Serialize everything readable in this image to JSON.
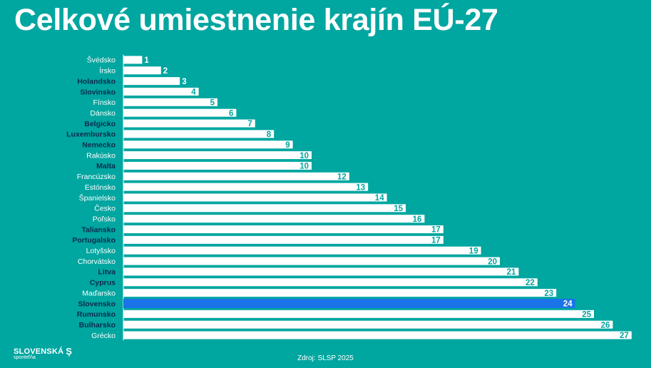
{
  "title": "Celkové umiestnenie krajín EÚ-27",
  "source": "Zdroj: SLSP 2025",
  "logo": {
    "name": "SLOVENSKÁ",
    "mark": "Ş",
    "sub": "sporiteľňa"
  },
  "colors": {
    "background": "#00A6A0",
    "bar": "#FFFFFF",
    "highlight_bar": "#1A73E8",
    "value_text": "#00A6A0",
    "highlight_value_text": "#FFFFFF",
    "label_bold": "#0B2B4C",
    "label_normal": "#FFFFFF"
  },
  "chart_data": {
    "type": "bar",
    "orientation": "horizontal",
    "title": "Celkové umiestnenie krajín EÚ-27",
    "categories": [
      "Švédsko",
      "Írsko",
      "Holandsko",
      "Slovinsko",
      "Fínsko",
      "Dánsko",
      "Belgicko",
      "Luxembursko",
      "Nemecko",
      "Rakúsko",
      "Malta",
      "Francúzsko",
      "Estónsko",
      "Španielsko",
      "Česko",
      "Poľsko",
      "Taliansko",
      "Portugalsko",
      "Lotyšsko",
      "Chorvátsko",
      "Litva",
      "Cyprus",
      "Maďarsko",
      "Slovensko",
      "Rumunsko",
      "Bulharsko",
      "Grécko"
    ],
    "values": [
      1,
      2,
      3,
      4,
      5,
      6,
      7,
      8,
      9,
      10,
      10,
      12,
      13,
      14,
      15,
      16,
      17,
      17,
      19,
      20,
      21,
      22,
      23,
      24,
      25,
      26,
      27
    ],
    "bold_labels": [
      false,
      false,
      true,
      true,
      false,
      false,
      true,
      true,
      true,
      false,
      true,
      false,
      false,
      false,
      false,
      false,
      true,
      true,
      false,
      false,
      true,
      true,
      false,
      true,
      true,
      true,
      false
    ],
    "highlight": "Slovensko",
    "xlim": [
      0,
      27
    ],
    "grid": false,
    "legend": "none"
  }
}
